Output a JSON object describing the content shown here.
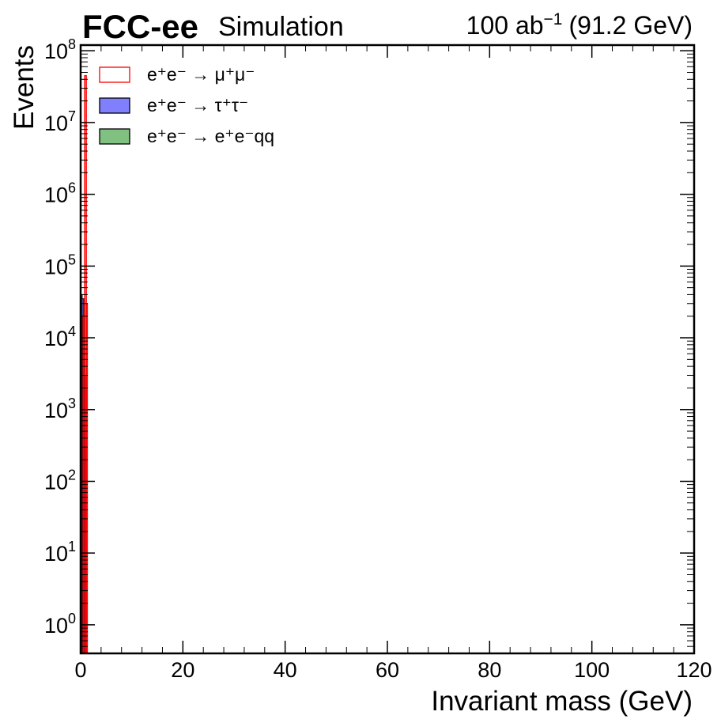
{
  "header": {
    "experiment": "FCC-ee",
    "tag": "Simulation",
    "lumi_value": "100 ab",
    "lumi_exp": "−1",
    "energy": "(91.2 GeV)"
  },
  "chart_data": {
    "type": "histogram",
    "xlabel": "Invariant mass (GeV)",
    "ylabel": "Events",
    "xlim": [
      0,
      120
    ],
    "ylim": [
      0.4,
      120000000
    ],
    "yscale": "log",
    "x_ticks": [
      0,
      20,
      40,
      60,
      80,
      100,
      120
    ],
    "y_ticks": [
      {
        "base": "10",
        "exp": "0",
        "value": 1
      },
      {
        "base": "10",
        "exp": "1",
        "value": 10
      },
      {
        "base": "10",
        "exp": "2",
        "value": 100
      },
      {
        "base": "10",
        "exp": "3",
        "value": 1000
      },
      {
        "base": "10",
        "exp": "4",
        "value": 10000
      },
      {
        "base": "10",
        "exp": "5",
        "value": 100000
      },
      {
        "base": "10",
        "exp": "6",
        "value": 1000000
      },
      {
        "base": "10",
        "exp": "7",
        "value": 10000000
      },
      {
        "base": "10",
        "exp": "8",
        "value": 100000000
      }
    ],
    "grid": false,
    "legend_position": "top-left",
    "series": [
      {
        "name": "e⁺e⁻ → μ⁺μ⁻",
        "style": "step",
        "color": "#ff0000",
        "bins": [
          {
            "x0": 0.5,
            "x1": 0.8,
            "y": 20000
          },
          {
            "x0": 0.8,
            "x1": 1.1,
            "y": 45000000
          },
          {
            "x0": 1.1,
            "x1": 1.3,
            "y": 30000
          }
        ]
      },
      {
        "name": "e⁺e⁻ → τ⁺τ⁻",
        "style": "filled",
        "color": "#8080ff",
        "edge": "#000000",
        "bins": [
          {
            "x0": 0.0,
            "x1": 0.3,
            "y": 40000
          },
          {
            "x0": 0.3,
            "x1": 0.6,
            "y": 35000
          },
          {
            "x0": 0.6,
            "x1": 0.9,
            "y": 3000
          },
          {
            "x0": 0.9,
            "x1": 1.2,
            "y": 300
          }
        ]
      },
      {
        "name": "e⁺e⁻ → e⁺e⁻qq",
        "style": "filled",
        "color": "#80c080",
        "edge": "#000000",
        "bins": [
          {
            "x0": 0.0,
            "x1": 0.3,
            "y": 2000
          },
          {
            "x0": 0.3,
            "x1": 0.6,
            "y": 400
          },
          {
            "x0": 0.6,
            "x1": 0.9,
            "y": 60
          },
          {
            "x0": 0.9,
            "x1": 1.2,
            "y": 8
          }
        ]
      }
    ]
  }
}
